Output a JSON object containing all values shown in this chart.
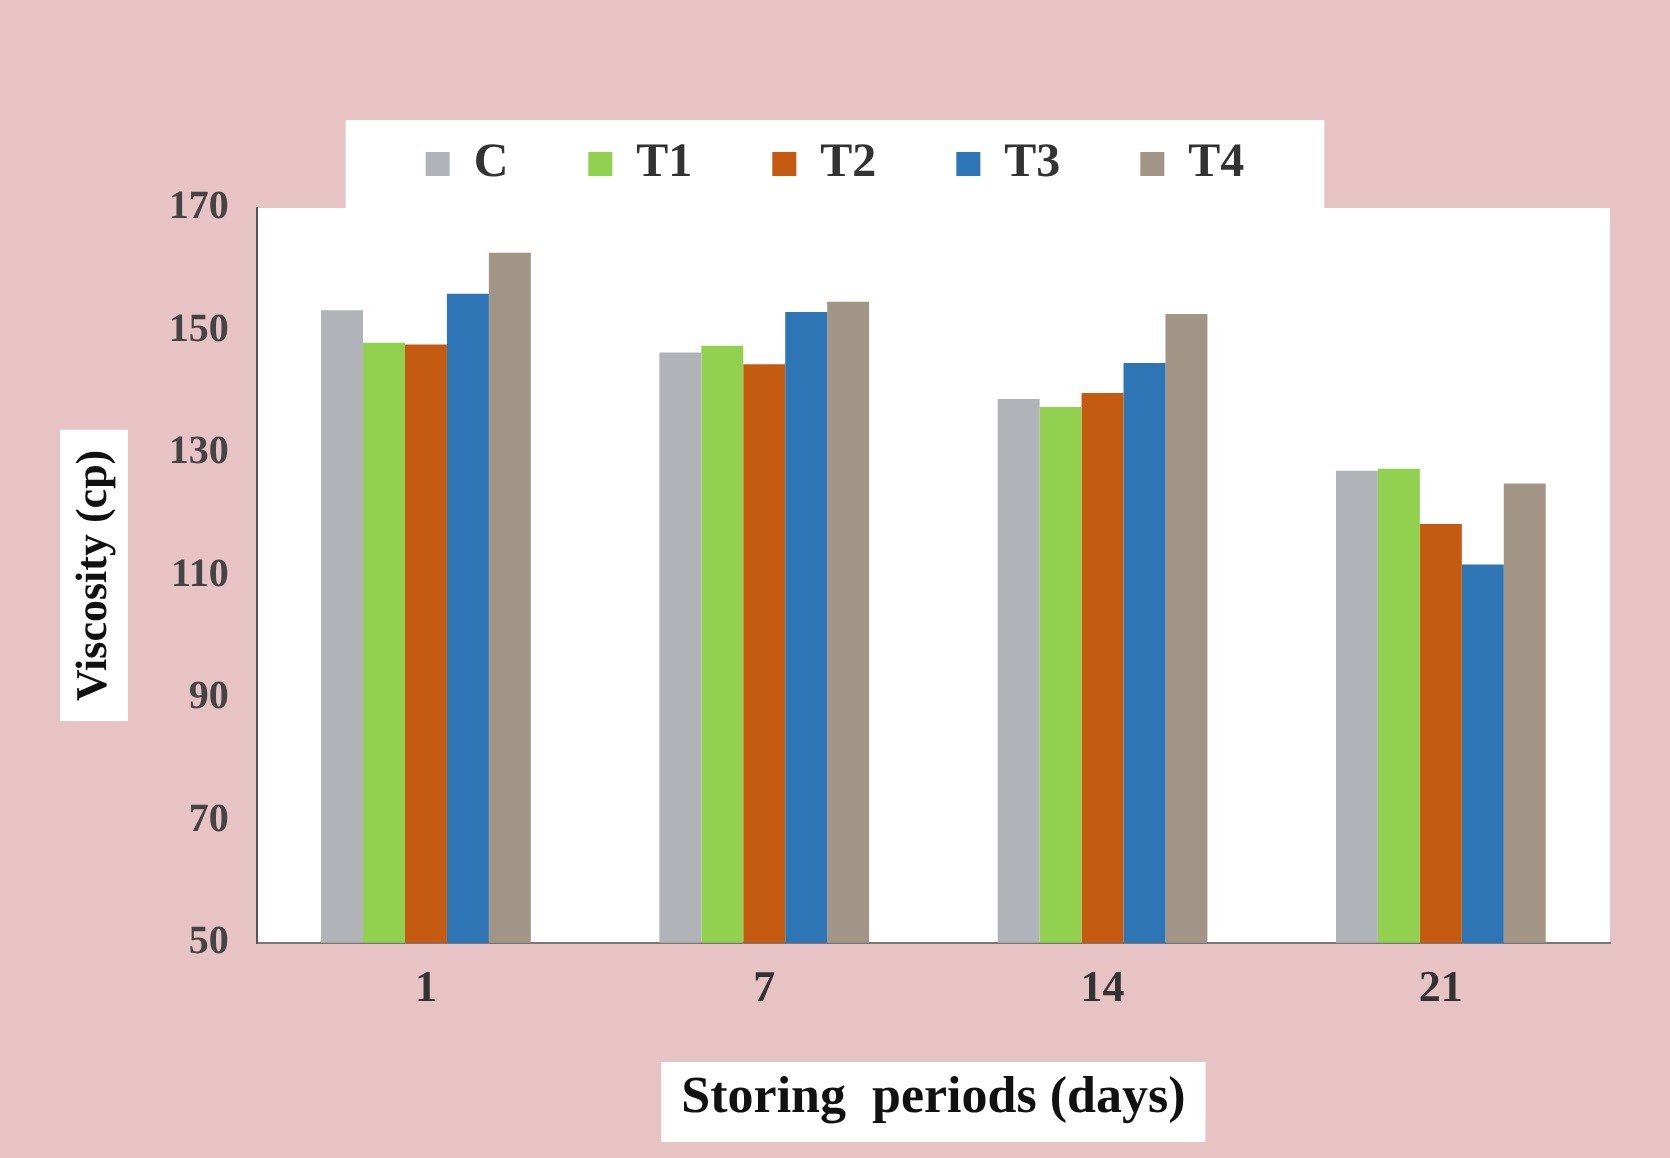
{
  "chart_data": {
    "type": "bar",
    "xlabel": "Storing  periods (days)",
    "ylabel": "Viscosity (cp)",
    "categories": [
      "1",
      "7",
      "14",
      "21"
    ],
    "series": [
      {
        "name": "C",
        "color": "#b0b4b8",
        "values": [
          153.3,
          146.4,
          138.8,
          127.1
        ]
      },
      {
        "name": "T1",
        "color": "#92d050",
        "values": [
          148,
          147.5,
          137.5,
          127.4
        ]
      },
      {
        "name": "T2",
        "color": "#c55a11",
        "values": [
          147.7,
          144.5,
          139.8,
          118.4
        ]
      },
      {
        "name": "T3",
        "color": "#2e75b6",
        "values": [
          156,
          153,
          144.7,
          111.8
        ]
      },
      {
        "name": "T4",
        "color": "#a39585",
        "values": [
          162.7,
          154.7,
          152.7,
          125
        ]
      }
    ],
    "ylim": [
      50,
      170
    ],
    "yticks": [
      50,
      70,
      90,
      110,
      130,
      150,
      170
    ],
    "grid": false,
    "legend": "top"
  }
}
